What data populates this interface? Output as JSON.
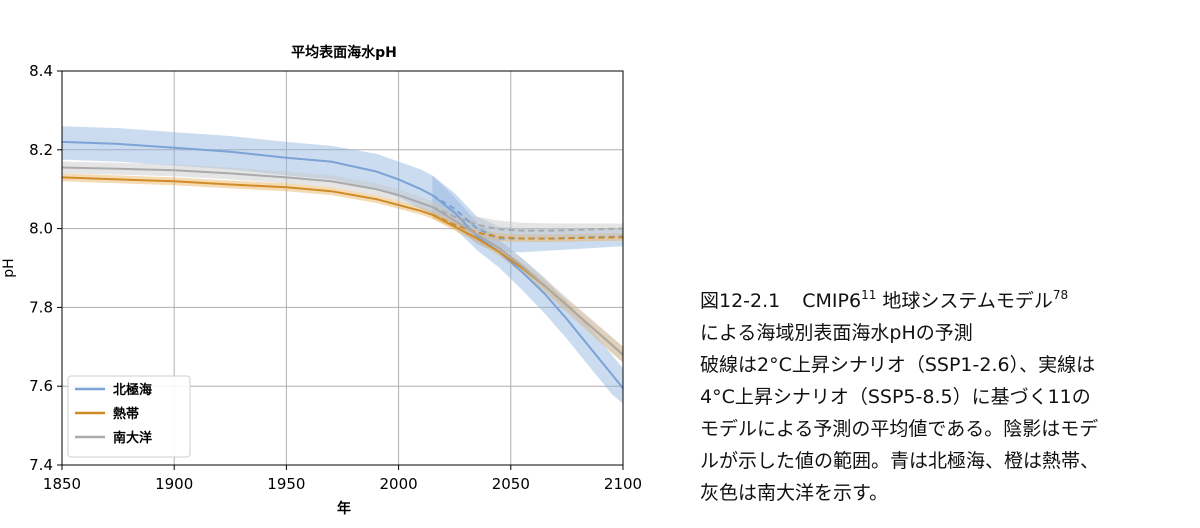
{
  "chart_data": {
    "type": "line",
    "title": "平均表面海水pH",
    "xlabel": "年",
    "ylabel": "pH",
    "xlim": [
      1850,
      2100
    ],
    "ylim": [
      7.4,
      8.4
    ],
    "xticks": [
      1850,
      1900,
      1950,
      2000,
      2050,
      2100
    ],
    "xtick_labels": [
      "1850",
      "1900",
      "1950",
      "2000",
      "2050",
      "2100"
    ],
    "yticks": [
      7.4,
      7.6,
      7.8,
      8.0,
      8.2,
      8.4
    ],
    "ytick_labels": [
      "7.4",
      "7.6",
      "7.8",
      "8.0",
      "8.2",
      "8.4"
    ],
    "grid": true,
    "legend_position": "lower-left",
    "series": [
      {
        "name": "北極海",
        "color": "#7ba3d6",
        "band_color": "#8fb2de",
        "historical": {
          "x": [
            1850,
            1875,
            1900,
            1925,
            1950,
            1970,
            1990,
            2000,
            2010,
            2015
          ],
          "y": [
            8.22,
            8.215,
            8.205,
            8.195,
            8.18,
            8.17,
            8.145,
            8.125,
            8.1,
            8.085
          ],
          "lower": [
            8.175,
            8.17,
            8.16,
            8.15,
            8.135,
            8.125,
            8.1,
            8.08,
            8.05,
            8.035
          ],
          "upper": [
            8.26,
            8.255,
            8.245,
            8.235,
            8.22,
            8.21,
            8.19,
            8.17,
            8.15,
            8.135
          ]
        },
        "ssp126": {
          "x": [
            2015,
            2025,
            2035,
            2045,
            2055,
            2070,
            2085,
            2100
          ],
          "y": [
            8.085,
            8.05,
            8.0,
            7.975,
            7.975,
            7.975,
            7.978,
            7.98
          ],
          "lower": [
            8.035,
            8.01,
            7.96,
            7.94,
            7.94,
            7.945,
            7.95,
            7.955
          ],
          "upper": [
            8.135,
            8.09,
            8.03,
            8.005,
            8.0,
            8.0,
            8.0,
            8.0
          ]
        },
        "ssp585": {
          "x": [
            2015,
            2025,
            2035,
            2045,
            2055,
            2065,
            2075,
            2085,
            2095,
            2100
          ],
          "y": [
            8.085,
            8.04,
            7.98,
            7.94,
            7.89,
            7.835,
            7.77,
            7.7,
            7.63,
            7.595
          ],
          "lower": [
            8.035,
            8.0,
            7.945,
            7.9,
            7.845,
            7.785,
            7.72,
            7.65,
            7.58,
            7.555
          ],
          "upper": [
            8.135,
            8.08,
            8.015,
            7.97,
            7.925,
            7.875,
            7.815,
            7.75,
            7.68,
            7.645
          ]
        }
      },
      {
        "name": "熱帯",
        "color": "#d08c27",
        "band_color": "#e8b058",
        "historical": {
          "x": [
            1850,
            1875,
            1900,
            1925,
            1950,
            1970,
            1990,
            2000,
            2010,
            2015
          ],
          "y": [
            8.13,
            8.125,
            8.12,
            8.112,
            8.105,
            8.095,
            8.075,
            8.06,
            8.045,
            8.035
          ],
          "lower": [
            8.12,
            8.115,
            8.11,
            8.102,
            8.095,
            8.085,
            8.065,
            8.05,
            8.035,
            8.025
          ],
          "upper": [
            8.14,
            8.135,
            8.13,
            8.122,
            8.115,
            8.105,
            8.085,
            8.07,
            8.055,
            8.045
          ]
        },
        "ssp126": {
          "x": [
            2015,
            2025,
            2035,
            2045,
            2055,
            2070,
            2085,
            2100
          ],
          "y": [
            8.035,
            8.01,
            7.99,
            7.978,
            7.975,
            7.975,
            7.977,
            7.978
          ],
          "lower": [
            8.025,
            8.0,
            7.98,
            7.968,
            7.966,
            7.966,
            7.968,
            7.969
          ],
          "upper": [
            8.045,
            8.02,
            8.0,
            7.988,
            7.985,
            7.985,
            7.987,
            7.988
          ]
        },
        "ssp585": {
          "x": [
            2015,
            2025,
            2035,
            2045,
            2055,
            2065,
            2075,
            2085,
            2095,
            2100
          ],
          "y": [
            8.035,
            8.005,
            7.975,
            7.94,
            7.9,
            7.855,
            7.805,
            7.755,
            7.705,
            7.68
          ],
          "lower": [
            8.025,
            7.995,
            7.965,
            7.93,
            7.888,
            7.842,
            7.79,
            7.738,
            7.685,
            7.66
          ],
          "upper": [
            8.045,
            8.015,
            7.985,
            7.95,
            7.912,
            7.868,
            7.82,
            7.772,
            7.725,
            7.7
          ]
        }
      },
      {
        "name": "南大洋",
        "color": "#aaaaaa",
        "band_color": "#c6c6c6",
        "historical": {
          "x": [
            1850,
            1875,
            1900,
            1925,
            1950,
            1970,
            1990,
            2000,
            2010,
            2015
          ],
          "y": [
            8.155,
            8.152,
            8.148,
            8.14,
            8.13,
            8.12,
            8.1,
            8.085,
            8.065,
            8.055
          ],
          "lower": [
            8.14,
            8.137,
            8.133,
            8.125,
            8.115,
            8.105,
            8.085,
            8.07,
            8.05,
            8.04
          ],
          "upper": [
            8.17,
            8.167,
            8.163,
            8.155,
            8.145,
            8.135,
            8.115,
            8.1,
            8.08,
            8.07
          ]
        },
        "ssp126": {
          "x": [
            2015,
            2025,
            2035,
            2045,
            2055,
            2070,
            2085,
            2100
          ],
          "y": [
            8.055,
            8.03,
            8.01,
            7.998,
            7.995,
            7.995,
            7.998,
            8.0
          ],
          "lower": [
            8.04,
            8.015,
            7.99,
            7.98,
            7.975,
            7.975,
            7.978,
            7.98
          ],
          "upper": [
            8.07,
            8.045,
            8.03,
            8.02,
            8.015,
            8.013,
            8.013,
            8.013
          ]
        },
        "ssp585": {
          "x": [
            2015,
            2025,
            2035,
            2045,
            2055,
            2065,
            2075,
            2085,
            2095,
            2100
          ],
          "y": [
            8.055,
            8.02,
            7.985,
            7.95,
            7.905,
            7.855,
            7.805,
            7.755,
            7.705,
            7.68
          ],
          "lower": [
            8.04,
            8.005,
            7.97,
            7.93,
            7.885,
            7.835,
            7.785,
            7.735,
            7.685,
            7.66
          ],
          "upper": [
            8.07,
            8.035,
            8.0,
            7.97,
            7.925,
            7.875,
            7.825,
            7.775,
            7.725,
            7.7
          ]
        }
      }
    ]
  },
  "caption": {
    "fig_label": "図12-2.1",
    "line1_text": "CMIP6",
    "line1_sup1": "11",
    "line1_text2": " 地球システムモデル",
    "line1_sup2": "78",
    "line2": "による海域別表面海水pHの予測",
    "line3": "破線は2°C上昇シナリオ（SSP1-2.6）、実線は",
    "line4": "4°C上昇シナリオ（SSP5-8.5）に基づく11の",
    "line5": "モデルによる予測の平均値である。陰影はモデ",
    "line6": "ルが示した値の範囲。青は北極海、橙は熱帯、",
    "line7": "灰色は南大洋を示す。"
  }
}
